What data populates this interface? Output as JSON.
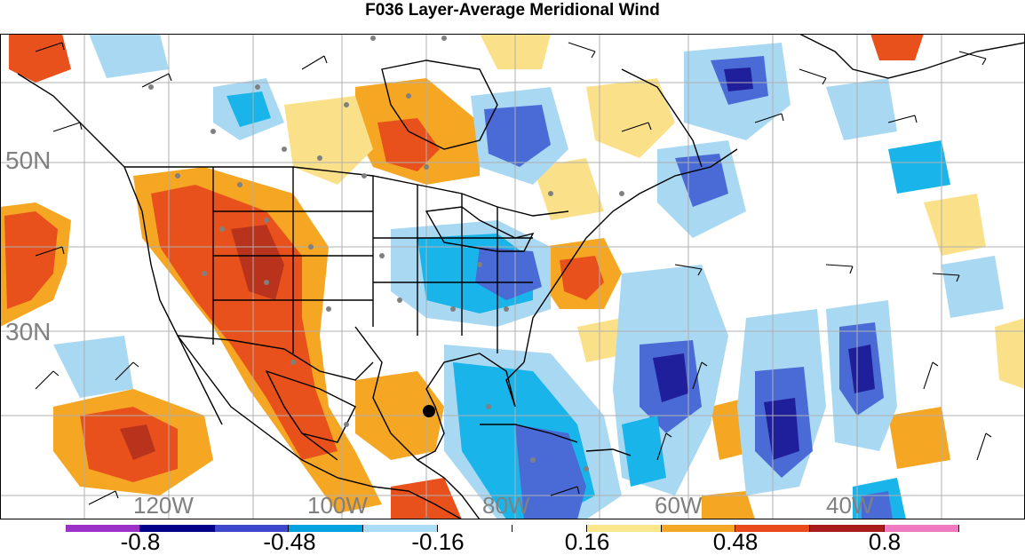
{
  "title": "F036 Layer-Average Meridional Wind",
  "map": {
    "lat_labels": [
      "50N",
      "30N"
    ],
    "lon_labels": [
      "120W",
      "100W",
      "80W",
      "60W",
      "40W"
    ]
  },
  "colorbar": {
    "colors": [
      "#9c31c8",
      "#00008b",
      "#3f48cc",
      "#00a3e0",
      "#aadcf5",
      "#ffffff",
      "#ffffff",
      "#fbe789",
      "#f5a623",
      "#e84a1c",
      "#a81c1c",
      "#f07ac0"
    ],
    "tick_labels": [
      "-0.8",
      "-0.48",
      "-0.16",
      "0.16",
      "0.48",
      "0.8"
    ]
  },
  "fills": {
    "dark_blue": "#1f1f9c",
    "blue": "#4a6bd6",
    "cyan": "#18b4ea",
    "light_blue": "#a9d9f2",
    "yellow": "#fbe08a",
    "orange": "#f5a623",
    "red_orange": "#e8501c",
    "dark_red": "#b8321c"
  }
}
